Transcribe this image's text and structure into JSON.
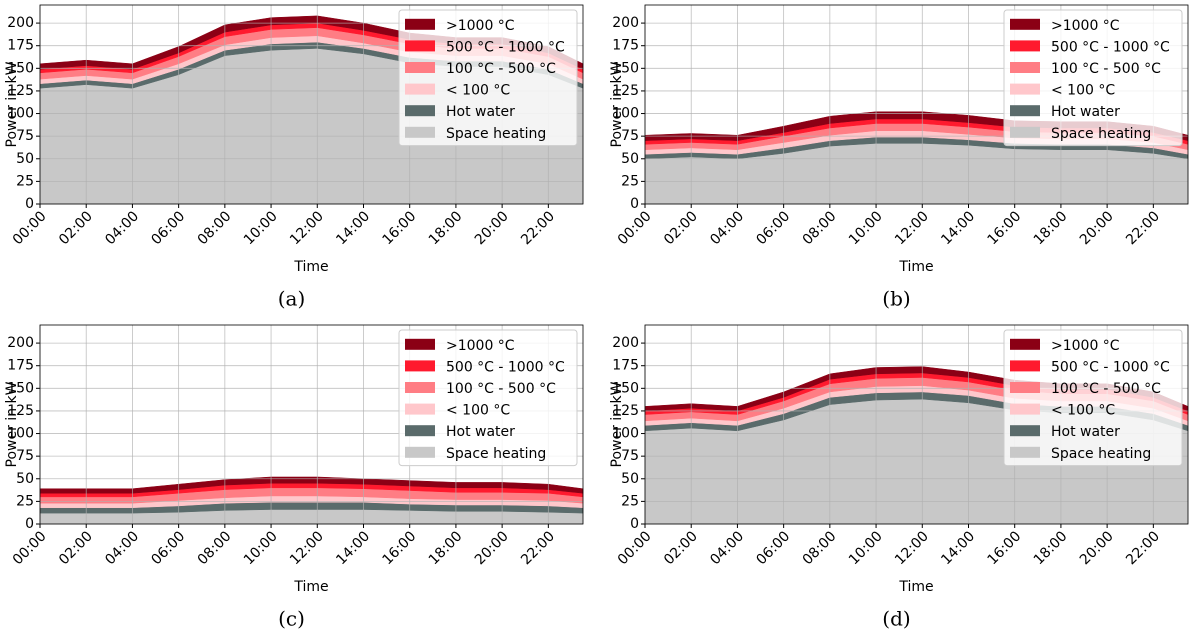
{
  "chart_data": [
    {
      "type": "stacked-area",
      "caption": "(a)",
      "xlabel": "Time",
      "ylabel": "Power in kW",
      "grid": true,
      "legend": "upper right",
      "x": [
        0,
        2,
        4,
        6,
        8,
        10,
        12,
        14,
        16,
        18,
        20,
        22,
        23.5
      ],
      "xlim": [
        0,
        23.5
      ],
      "xticks": [
        {
          "value": 0,
          "label": "00:00"
        },
        {
          "value": 2,
          "label": "02:00"
        },
        {
          "value": 4,
          "label": "04:00"
        },
        {
          "value": 6,
          "label": "06:00"
        },
        {
          "value": 8,
          "label": "08:00"
        },
        {
          "value": 10,
          "label": "10:00"
        },
        {
          "value": 12,
          "label": "12:00"
        },
        {
          "value": 14,
          "label": "14:00"
        },
        {
          "value": 16,
          "label": "16:00"
        },
        {
          "value": 18,
          "label": "18:00"
        },
        {
          "value": 20,
          "label": "20:00"
        },
        {
          "value": 22,
          "label": "22:00"
        }
      ],
      "ylim": [
        0,
        220
      ],
      "yticks": [
        0,
        25,
        50,
        75,
        100,
        125,
        150,
        175,
        200
      ],
      "series": [
        {
          "name": "Space heating",
          "color": "#c8c8c8",
          "values": [
            128,
            132,
            128,
            143,
            164,
            170,
            172,
            166,
            156,
            152,
            152,
            143,
            128
          ]
        },
        {
          "name": "Hot water",
          "color": "#5a6b6b",
          "values": [
            5,
            5,
            5,
            6,
            6,
            7,
            7,
            6,
            6,
            6,
            6,
            6,
            5
          ]
        },
        {
          "name": "< 100 °C",
          "color": "#ffc7cb",
          "values": [
            5,
            5,
            5,
            6,
            6,
            7,
            7,
            6,
            6,
            6,
            6,
            6,
            5
          ]
        },
        {
          "name": "100 °C - 500 °C",
          "color": "#ff7d84",
          "values": [
            7,
            7,
            7,
            8,
            9,
            9,
            9,
            9,
            9,
            8,
            8,
            8,
            7
          ]
        },
        {
          "name": "500 °C - 1000 °C",
          "color": "#ff1a2e",
          "values": [
            4,
            4,
            4,
            4,
            5,
            5,
            5,
            5,
            5,
            5,
            5,
            4,
            4
          ]
        },
        {
          "name": ">1000 °C",
          "color": "#8b0015",
          "values": [
            6,
            6,
            6,
            7,
            8,
            8,
            8,
            8,
            7,
            7,
            7,
            7,
            6
          ]
        }
      ]
    },
    {
      "type": "stacked-area",
      "caption": "(b)",
      "xlabel": "Time",
      "ylabel": "Power in kW",
      "grid": true,
      "legend": "upper right",
      "x": [
        0,
        2,
        4,
        6,
        8,
        10,
        12,
        14,
        16,
        18,
        20,
        22,
        23.5
      ],
      "xlim": [
        0,
        23.5
      ],
      "xticks": [
        {
          "value": 0,
          "label": "00:00"
        },
        {
          "value": 2,
          "label": "02:00"
        },
        {
          "value": 4,
          "label": "04:00"
        },
        {
          "value": 6,
          "label": "06:00"
        },
        {
          "value": 8,
          "label": "08:00"
        },
        {
          "value": 10,
          "label": "10:00"
        },
        {
          "value": 12,
          "label": "12:00"
        },
        {
          "value": 14,
          "label": "14:00"
        },
        {
          "value": 16,
          "label": "16:00"
        },
        {
          "value": 18,
          "label": "18:00"
        },
        {
          "value": 20,
          "label": "20:00"
        },
        {
          "value": 22,
          "label": "22:00"
        }
      ],
      "ylim": [
        0,
        220
      ],
      "yticks": [
        0,
        25,
        50,
        75,
        100,
        125,
        150,
        175,
        200
      ],
      "series": [
        {
          "name": "Space heating",
          "color": "#c8c8c8",
          "values": [
            50,
            52,
            50,
            56,
            64,
            67,
            67,
            65,
            61,
            60,
            60,
            56,
            50
          ]
        },
        {
          "name": "Hot water",
          "color": "#5a6b6b",
          "values": [
            5,
            5,
            5,
            6,
            6,
            7,
            7,
            6,
            6,
            6,
            6,
            6,
            5
          ]
        },
        {
          "name": "< 100 °C",
          "color": "#ffc7cb",
          "values": [
            5,
            5,
            5,
            6,
            6,
            7,
            7,
            6,
            6,
            6,
            6,
            6,
            5
          ]
        },
        {
          "name": "100 °C - 500 °C",
          "color": "#ff7d84",
          "values": [
            6,
            6,
            6,
            7,
            8,
            8,
            8,
            8,
            7,
            7,
            7,
            7,
            6
          ]
        },
        {
          "name": "500 °C - 1000 °C",
          "color": "#ff1a2e",
          "values": [
            4,
            4,
            4,
            4,
            5,
            5,
            5,
            5,
            5,
            5,
            5,
            4,
            4
          ]
        },
        {
          "name": ">1000 °C",
          "color": "#8b0015",
          "values": [
            6,
            6,
            6,
            7,
            8,
            8,
            8,
            8,
            7,
            7,
            7,
            7,
            6
          ]
        }
      ]
    },
    {
      "type": "stacked-area",
      "caption": "(c)",
      "xlabel": "Time",
      "ylabel": "Power in kW",
      "grid": true,
      "legend": "upper right",
      "x": [
        0,
        2,
        4,
        6,
        8,
        10,
        12,
        14,
        16,
        18,
        20,
        22,
        23.5
      ],
      "xlim": [
        0,
        23.5
      ],
      "xticks": [
        {
          "value": 0,
          "label": "00:00"
        },
        {
          "value": 2,
          "label": "02:00"
        },
        {
          "value": 4,
          "label": "04:00"
        },
        {
          "value": 6,
          "label": "06:00"
        },
        {
          "value": 8,
          "label": "08:00"
        },
        {
          "value": 10,
          "label": "10:00"
        },
        {
          "value": 12,
          "label": "12:00"
        },
        {
          "value": 14,
          "label": "14:00"
        },
        {
          "value": 16,
          "label": "16:00"
        },
        {
          "value": 18,
          "label": "18:00"
        },
        {
          "value": 20,
          "label": "20:00"
        },
        {
          "value": 22,
          "label": "22:00"
        }
      ],
      "ylim": [
        0,
        220
      ],
      "yticks": [
        0,
        25,
        50,
        75,
        100,
        125,
        150,
        175,
        200
      ],
      "series": [
        {
          "name": "Space heating",
          "color": "#c8c8c8",
          "values": [
            12,
            12,
            12,
            13,
            15,
            16,
            16,
            16,
            15,
            14,
            14,
            13,
            12
          ]
        },
        {
          "name": "Hot water",
          "color": "#5a6b6b",
          "values": [
            6,
            6,
            6,
            7,
            8,
            8,
            8,
            8,
            7,
            7,
            7,
            7,
            6
          ]
        },
        {
          "name": "< 100 °C",
          "color": "#ffc7cb",
          "values": [
            5,
            5,
            5,
            6,
            6,
            7,
            7,
            6,
            6,
            6,
            6,
            6,
            5
          ]
        },
        {
          "name": "100 °C - 500 °C",
          "color": "#ff7d84",
          "values": [
            7,
            7,
            7,
            8,
            9,
            9,
            9,
            9,
            9,
            8,
            8,
            8,
            7
          ]
        },
        {
          "name": "500 °C - 1000 °C",
          "color": "#ff1a2e",
          "values": [
            4,
            4,
            4,
            4,
            5,
            5,
            5,
            5,
            5,
            5,
            5,
            4,
            4
          ]
        },
        {
          "name": ">1000 °C",
          "color": "#8b0015",
          "values": [
            5,
            5,
            5,
            6,
            6,
            7,
            7,
            6,
            6,
            6,
            6,
            6,
            5
          ]
        }
      ]
    },
    {
      "type": "stacked-area",
      "caption": "(d)",
      "xlabel": "Time",
      "ylabel": "Power in kW",
      "grid": true,
      "legend": "upper right",
      "x": [
        0,
        2,
        4,
        6,
        8,
        10,
        12,
        14,
        16,
        18,
        20,
        22,
        23.5
      ],
      "xlim": [
        0,
        23.5
      ],
      "xticks": [
        {
          "value": 0,
          "label": "00:00"
        },
        {
          "value": 2,
          "label": "02:00"
        },
        {
          "value": 4,
          "label": "04:00"
        },
        {
          "value": 6,
          "label": "06:00"
        },
        {
          "value": 8,
          "label": "08:00"
        },
        {
          "value": 10,
          "label": "10:00"
        },
        {
          "value": 12,
          "label": "12:00"
        },
        {
          "value": 14,
          "label": "14:00"
        },
        {
          "value": 16,
          "label": "16:00"
        },
        {
          "value": 18,
          "label": "18:00"
        },
        {
          "value": 20,
          "label": "20:00"
        },
        {
          "value": 22,
          "label": "22:00"
        }
      ],
      "ylim": [
        0,
        220
      ],
      "yticks": [
        0,
        25,
        50,
        75,
        100,
        125,
        150,
        175,
        200
      ],
      "series": [
        {
          "name": "Space heating",
          "color": "#c8c8c8",
          "values": [
            103,
            106,
            103,
            115,
            132,
            137,
            138,
            134,
            126,
            123,
            123,
            115,
            103
          ]
        },
        {
          "name": "Hot water",
          "color": "#5a6b6b",
          "values": [
            6,
            6,
            6,
            7,
            8,
            8,
            8,
            8,
            7,
            7,
            7,
            7,
            6
          ]
        },
        {
          "name": "< 100 °C",
          "color": "#ffc7cb",
          "values": [
            5,
            5,
            5,
            6,
            6,
            7,
            7,
            6,
            6,
            6,
            6,
            6,
            5
          ]
        },
        {
          "name": "100 °C - 500 °C",
          "color": "#ff7d84",
          "values": [
            7,
            7,
            7,
            8,
            9,
            9,
            9,
            9,
            9,
            8,
            8,
            8,
            7
          ]
        },
        {
          "name": "500 °C - 1000 °C",
          "color": "#ff1a2e",
          "values": [
            4,
            4,
            4,
            4,
            5,
            5,
            5,
            5,
            5,
            5,
            5,
            4,
            4
          ]
        },
        {
          "name": ">1000 °C",
          "color": "#8b0015",
          "values": [
            5,
            5,
            5,
            6,
            6,
            7,
            7,
            6,
            6,
            6,
            6,
            6,
            5
          ]
        }
      ]
    }
  ]
}
